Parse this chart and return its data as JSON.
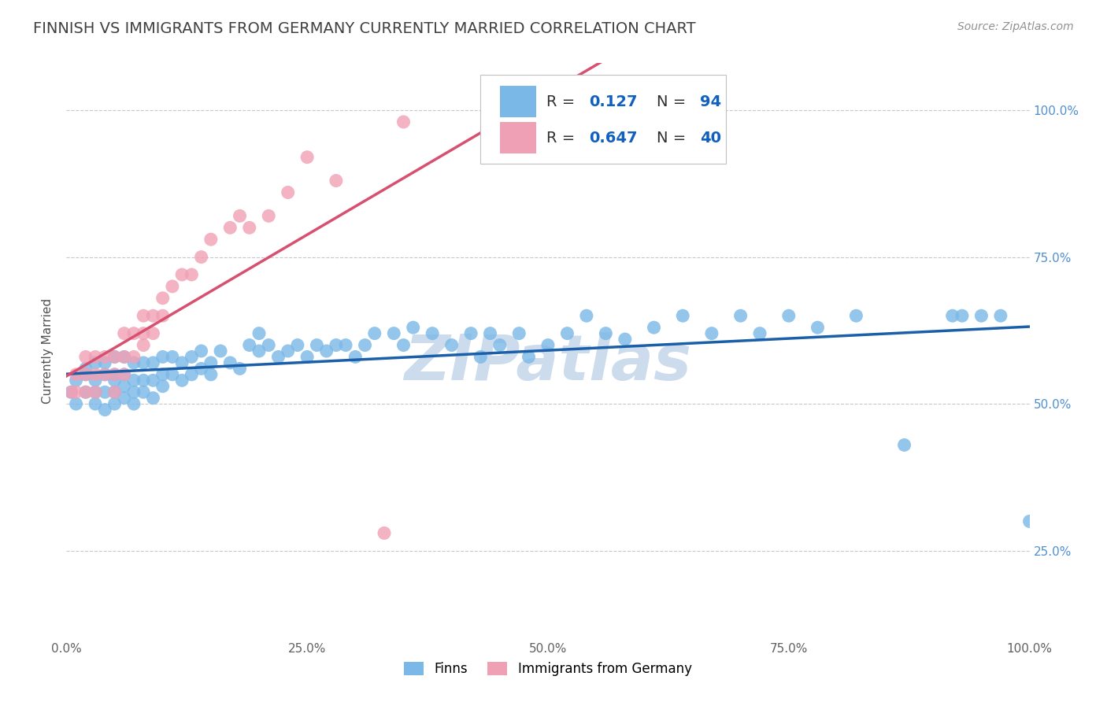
{
  "title": "FINNISH VS IMMIGRANTS FROM GERMANY CURRENTLY MARRIED CORRELATION CHART",
  "source": "Source: ZipAtlas.com",
  "ylabel": "Currently Married",
  "finns_R": 0.127,
  "finns_N": 94,
  "immigrants_R": 0.647,
  "immigrants_N": 40,
  "xlim": [
    0.0,
    1.0
  ],
  "ylim": [
    0.1,
    1.08
  ],
  "xtick_positions": [
    0.0,
    0.25,
    0.5,
    0.75,
    1.0
  ],
  "xtick_labels": [
    "0.0%",
    "25.0%",
    "50.0%",
    "75.0%",
    "100.0%"
  ],
  "ytick_positions": [
    0.25,
    0.5,
    0.75,
    1.0
  ],
  "ytick_labels": [
    "25.0%",
    "50.0%",
    "75.0%",
    "100.0%"
  ],
  "finns_color": "#7ab8e8",
  "immigrants_color": "#f0a0b5",
  "finns_line_color": "#1a5fa8",
  "immigrants_line_color": "#d85070",
  "background_color": "#ffffff",
  "grid_color": "#c8c8cc",
  "watermark": "ZIPatlas",
  "watermark_color": "#ccdcec",
  "title_color": "#404040",
  "source_color": "#909090",
  "tick_color": "#5090d0",
  "legend_R_color": "#1060c0",
  "legend_N_color": "#1060c0",
  "title_fontsize": 14,
  "axis_label_fontsize": 11,
  "tick_fontsize": 11,
  "legend_fontsize": 14,
  "source_fontsize": 10,
  "finns_x": [
    0.005,
    0.01,
    0.01,
    0.02,
    0.02,
    0.02,
    0.03,
    0.03,
    0.03,
    0.03,
    0.04,
    0.04,
    0.04,
    0.04,
    0.05,
    0.05,
    0.05,
    0.05,
    0.05,
    0.06,
    0.06,
    0.06,
    0.06,
    0.07,
    0.07,
    0.07,
    0.07,
    0.08,
    0.08,
    0.08,
    0.09,
    0.09,
    0.09,
    0.1,
    0.1,
    0.1,
    0.11,
    0.11,
    0.12,
    0.12,
    0.13,
    0.13,
    0.14,
    0.14,
    0.15,
    0.15,
    0.16,
    0.17,
    0.18,
    0.19,
    0.2,
    0.2,
    0.21,
    0.22,
    0.23,
    0.24,
    0.25,
    0.26,
    0.27,
    0.28,
    0.29,
    0.3,
    0.31,
    0.32,
    0.34,
    0.35,
    0.36,
    0.38,
    0.4,
    0.42,
    0.43,
    0.44,
    0.45,
    0.47,
    0.48,
    0.5,
    0.52,
    0.54,
    0.56,
    0.58,
    0.61,
    0.64,
    0.67,
    0.7,
    0.72,
    0.75,
    0.78,
    0.82,
    0.87,
    0.92,
    0.93,
    0.95,
    0.97,
    1.0
  ],
  "finns_y": [
    0.52,
    0.54,
    0.5,
    0.52,
    0.55,
    0.56,
    0.5,
    0.52,
    0.54,
    0.57,
    0.49,
    0.52,
    0.55,
    0.57,
    0.5,
    0.52,
    0.54,
    0.55,
    0.58,
    0.51,
    0.53,
    0.55,
    0.58,
    0.5,
    0.52,
    0.54,
    0.57,
    0.52,
    0.54,
    0.57,
    0.51,
    0.54,
    0.57,
    0.53,
    0.55,
    0.58,
    0.55,
    0.58,
    0.54,
    0.57,
    0.55,
    0.58,
    0.56,
    0.59,
    0.55,
    0.57,
    0.59,
    0.57,
    0.56,
    0.6,
    0.59,
    0.62,
    0.6,
    0.58,
    0.59,
    0.6,
    0.58,
    0.6,
    0.59,
    0.6,
    0.6,
    0.58,
    0.6,
    0.62,
    0.62,
    0.6,
    0.63,
    0.62,
    0.6,
    0.62,
    0.58,
    0.62,
    0.6,
    0.62,
    0.58,
    0.6,
    0.62,
    0.65,
    0.62,
    0.61,
    0.63,
    0.65,
    0.62,
    0.65,
    0.62,
    0.65,
    0.63,
    0.65,
    0.43,
    0.65,
    0.65,
    0.65,
    0.65,
    0.3
  ],
  "immigrants_x": [
    0.005,
    0.01,
    0.01,
    0.02,
    0.02,
    0.02,
    0.03,
    0.03,
    0.03,
    0.04,
    0.04,
    0.05,
    0.05,
    0.05,
    0.06,
    0.06,
    0.06,
    0.07,
    0.07,
    0.08,
    0.08,
    0.08,
    0.09,
    0.09,
    0.1,
    0.1,
    0.11,
    0.12,
    0.13,
    0.14,
    0.15,
    0.17,
    0.18,
    0.19,
    0.21,
    0.23,
    0.25,
    0.28,
    0.33,
    0.35
  ],
  "immigrants_y": [
    0.52,
    0.52,
    0.55,
    0.52,
    0.55,
    0.58,
    0.52,
    0.55,
    0.58,
    0.55,
    0.58,
    0.52,
    0.55,
    0.58,
    0.55,
    0.58,
    0.62,
    0.58,
    0.62,
    0.6,
    0.62,
    0.65,
    0.62,
    0.65,
    0.65,
    0.68,
    0.7,
    0.72,
    0.72,
    0.75,
    0.78,
    0.8,
    0.82,
    0.8,
    0.82,
    0.86,
    0.92,
    0.88,
    0.28,
    0.98
  ]
}
